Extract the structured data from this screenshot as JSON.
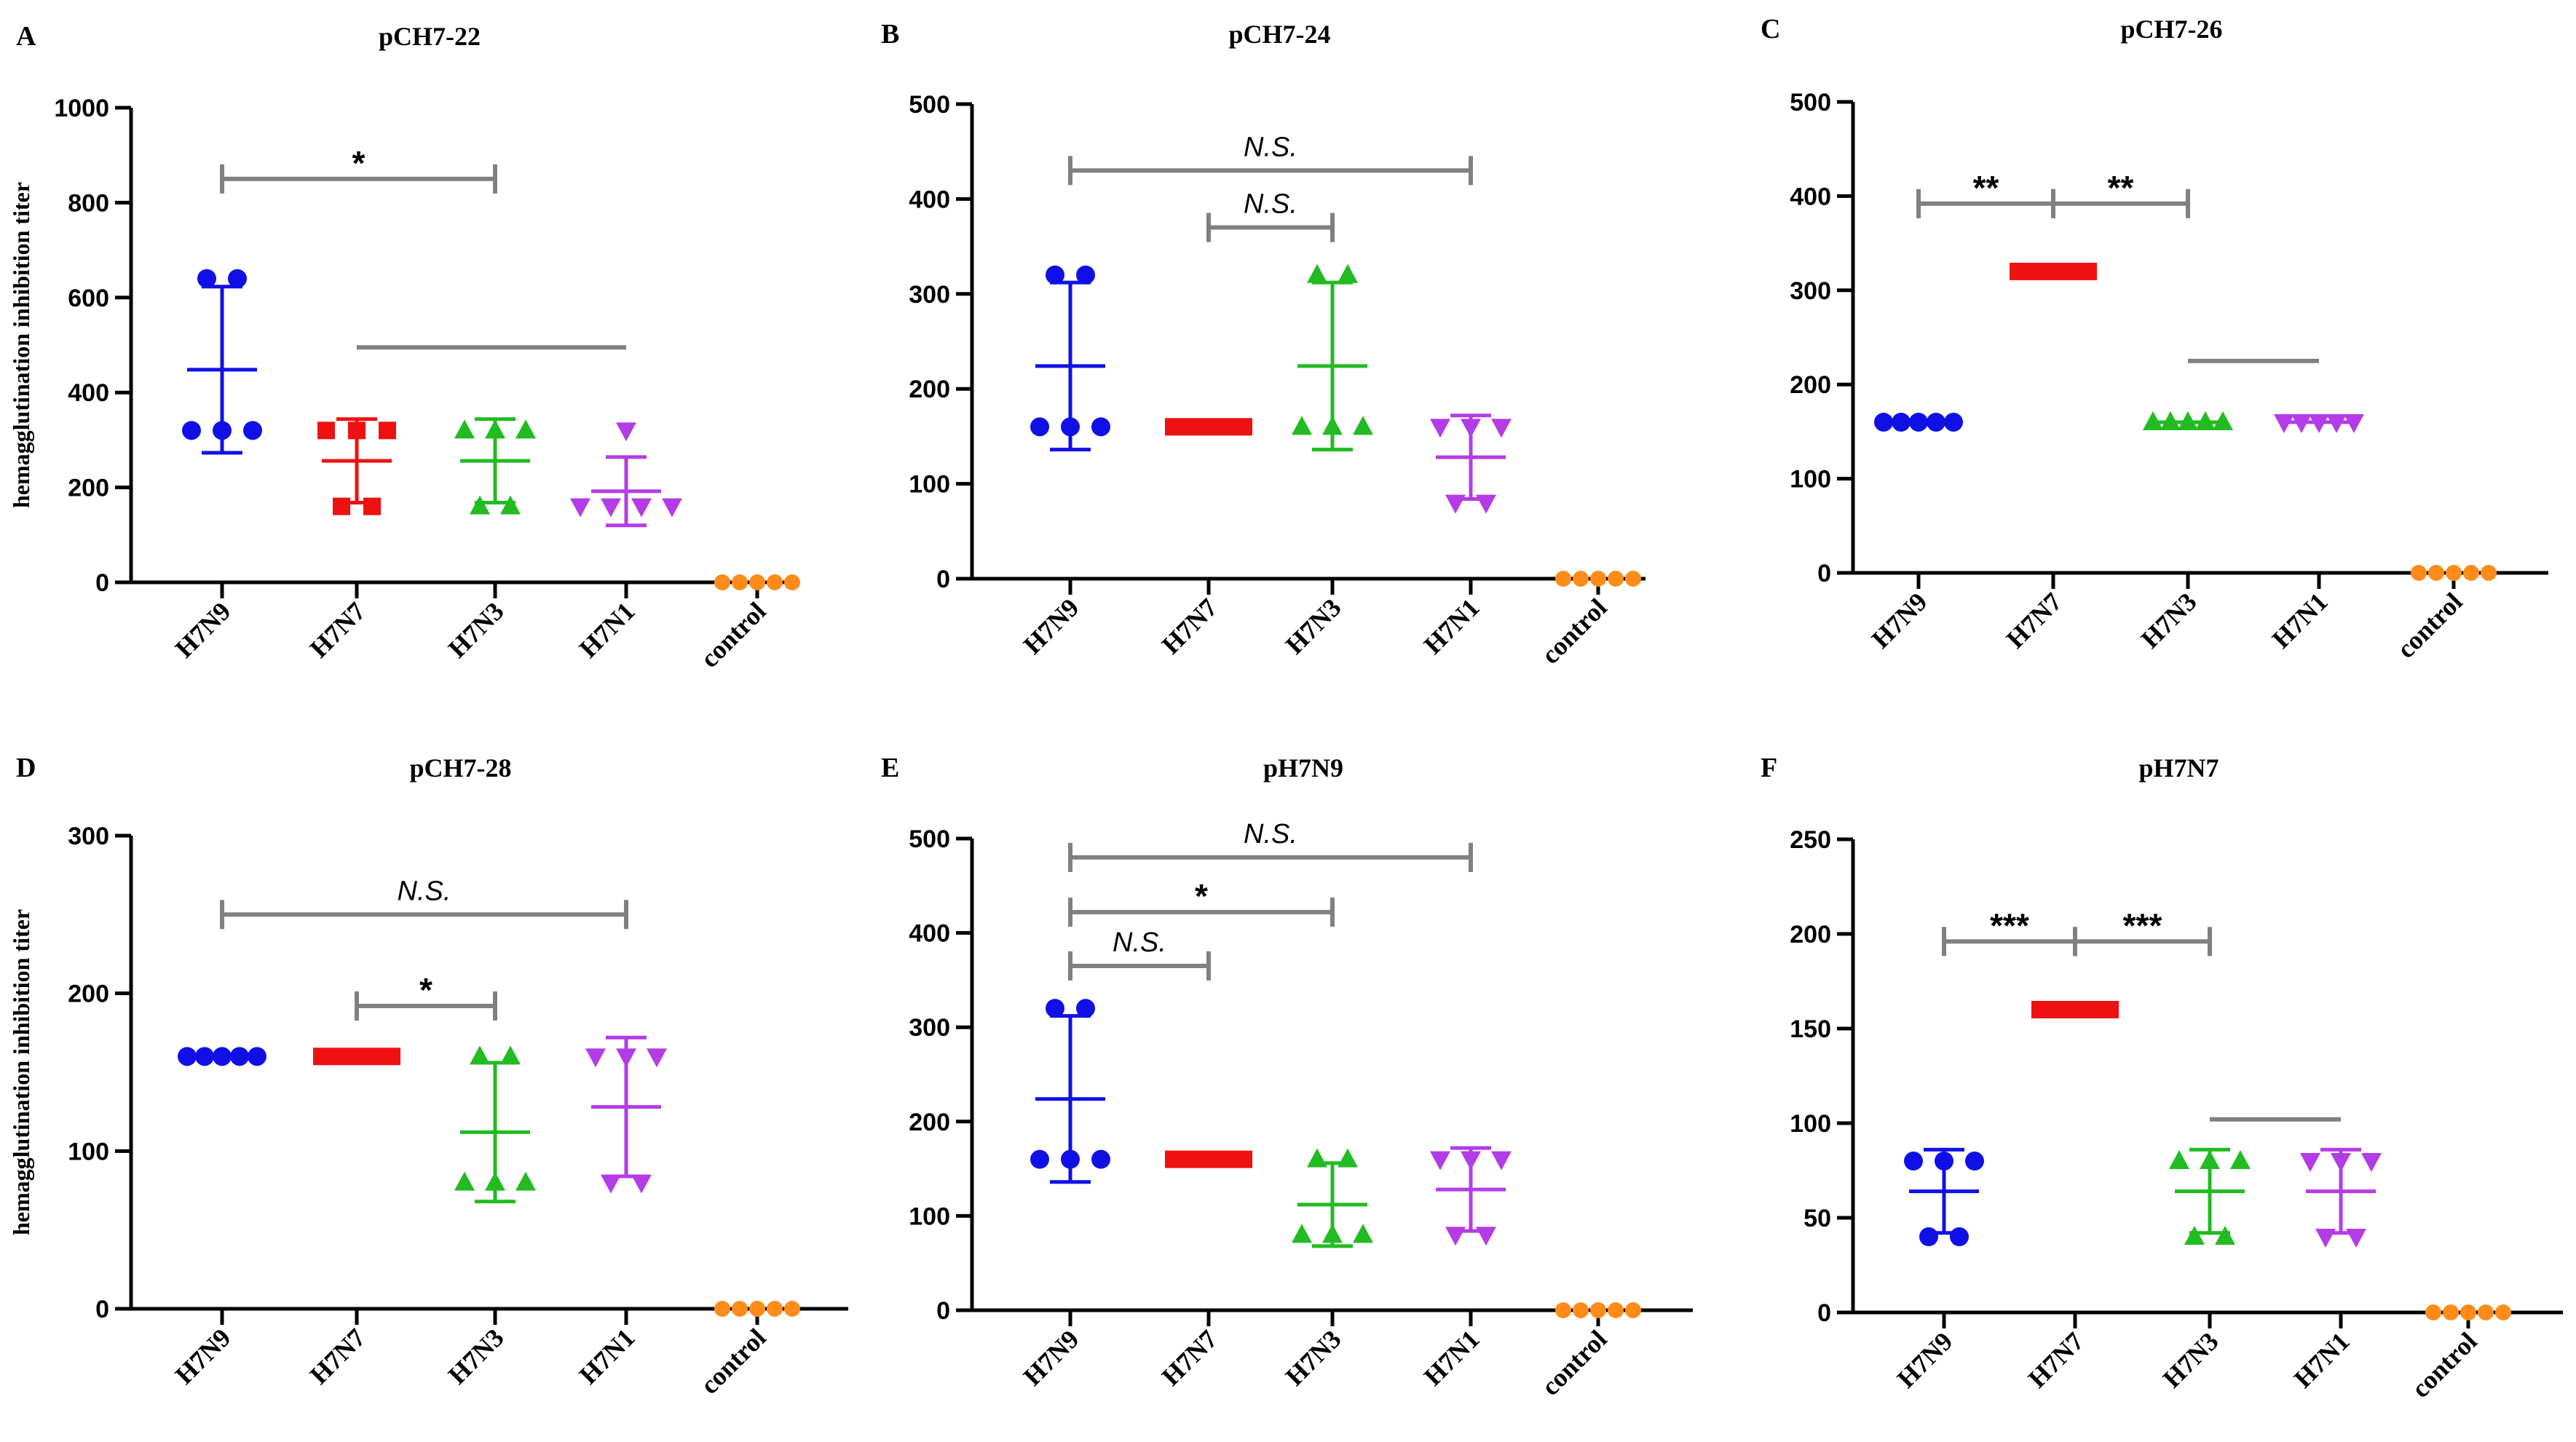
{
  "y_axis_label": "hemagglutination inhibition titer",
  "colors": {
    "H7N9": "#1010e6",
    "H7N7": "#ee1111",
    "H7N3": "#22bb22",
    "H7N1": "#b43ce6",
    "control": "#ff8c1a",
    "bracket": "#808080",
    "axis": "#000000"
  },
  "chart_data": [
    {
      "type": "scatter",
      "panel": "A",
      "title": "pCH7-22",
      "categories": [
        "H7N9",
        "H7N7",
        "H7N3",
        "H7N1",
        "control"
      ],
      "ylim": [
        0,
        1000
      ],
      "yticks": [
        0,
        200,
        400,
        600,
        800,
        1000
      ],
      "series": [
        {
          "name": "H7N9",
          "values": [
            320,
            320,
            320,
            640,
            640
          ],
          "mean": 448,
          "sd": 175
        },
        {
          "name": "H7N7",
          "values": [
            160,
            160,
            320,
            320,
            320
          ],
          "mean": 256,
          "sd": 88
        },
        {
          "name": "H7N3",
          "values": [
            160,
            160,
            320,
            320,
            320
          ],
          "mean": 256,
          "sd": 88
        },
        {
          "name": "H7N1",
          "values": [
            160,
            160,
            160,
            160,
            320
          ],
          "mean": 192,
          "sd": 72
        },
        {
          "name": "control",
          "values": [
            0,
            0,
            0,
            0,
            0
          ],
          "mean": 0,
          "sd": 0
        }
      ],
      "brackets": [
        {
          "from": "H7N9",
          "to": "H7N3",
          "label": "*",
          "y": 850,
          "ticks": true
        },
        {
          "from": "H7N7",
          "to": "H7N1",
          "label": "",
          "y": 495,
          "ticks": false
        }
      ]
    },
    {
      "type": "scatter",
      "panel": "B",
      "title": "pCH7-24",
      "categories": [
        "H7N9",
        "H7N7",
        "H7N3",
        "H7N1",
        "control"
      ],
      "ylim": [
        0,
        500
      ],
      "yticks": [
        0,
        100,
        200,
        300,
        400,
        500
      ],
      "series": [
        {
          "name": "H7N9",
          "values": [
            160,
            160,
            160,
            320,
            320
          ],
          "mean": 224,
          "sd": 88
        },
        {
          "name": "H7N7",
          "values": [
            160,
            160,
            160,
            160,
            160
          ],
          "mean": 160,
          "sd": 0
        },
        {
          "name": "H7N3",
          "values": [
            160,
            160,
            160,
            320,
            320
          ],
          "mean": 224,
          "sd": 88
        },
        {
          "name": "H7N1",
          "values": [
            80,
            80,
            160,
            160,
            160
          ],
          "mean": 128,
          "sd": 44
        },
        {
          "name": "control",
          "values": [
            0,
            0,
            0,
            0,
            0
          ],
          "mean": 0,
          "sd": 0
        }
      ],
      "brackets": [
        {
          "from": "H7N9",
          "to": "H7N1",
          "label": "N.S.",
          "y": 430,
          "ticks": true
        },
        {
          "from": "H7N7",
          "to": "H7N3",
          "label": "N.S.",
          "y": 370,
          "ticks": true
        }
      ]
    },
    {
      "type": "scatter",
      "panel": "C",
      "title": "pCH7-26",
      "categories": [
        "H7N9",
        "H7N7",
        "H7N3",
        "H7N1",
        "control"
      ],
      "ylim": [
        0,
        500
      ],
      "yticks": [
        0,
        100,
        200,
        300,
        400,
        500
      ],
      "series": [
        {
          "name": "H7N9",
          "values": [
            160,
            160,
            160,
            160,
            160
          ],
          "mean": 160,
          "sd": 0
        },
        {
          "name": "H7N7",
          "values": [
            320,
            320,
            320,
            320,
            320
          ],
          "mean": 320,
          "sd": 0
        },
        {
          "name": "H7N3",
          "values": [
            160,
            160,
            160,
            160,
            160
          ],
          "mean": 160,
          "sd": 0
        },
        {
          "name": "H7N1",
          "values": [
            160,
            160,
            160,
            160,
            160
          ],
          "mean": 160,
          "sd": 0
        },
        {
          "name": "control",
          "values": [
            0,
            0,
            0,
            0,
            0
          ],
          "mean": 0,
          "sd": 0
        }
      ],
      "brackets": [
        {
          "from": "H7N9",
          "to": "H7N7",
          "label": "**",
          "y": 392,
          "ticks": true
        },
        {
          "from": "H7N7",
          "to": "H7N3",
          "label": "**",
          "y": 392,
          "ticks": true
        },
        {
          "from": "H7N3",
          "to": "H7N1",
          "label": "",
          "y": 225,
          "ticks": false
        }
      ]
    },
    {
      "type": "scatter",
      "panel": "D",
      "title": "pCH7-28",
      "categories": [
        "H7N9",
        "H7N7",
        "H7N3",
        "H7N1",
        "control"
      ],
      "ylim": [
        0,
        300
      ],
      "yticks": [
        0,
        100,
        200,
        300
      ],
      "series": [
        {
          "name": "H7N9",
          "values": [
            160,
            160,
            160,
            160,
            160
          ],
          "mean": 160,
          "sd": 0
        },
        {
          "name": "H7N7",
          "values": [
            160,
            160,
            160,
            160,
            160
          ],
          "mean": 160,
          "sd": 0
        },
        {
          "name": "H7N3",
          "values": [
            80,
            80,
            80,
            160,
            160
          ],
          "mean": 112,
          "sd": 44
        },
        {
          "name": "H7N1",
          "values": [
            80,
            80,
            160,
            160,
            160
          ],
          "mean": 128,
          "sd": 44
        },
        {
          "name": "control",
          "values": [
            0,
            0,
            0,
            0,
            0
          ],
          "mean": 0,
          "sd": 0
        }
      ],
      "brackets": [
        {
          "from": "H7N9",
          "to": "H7N1",
          "label": "N.S.",
          "y": 250,
          "ticks": true
        },
        {
          "from": "H7N7",
          "to": "H7N3",
          "label": "*",
          "y": 192,
          "ticks": true
        }
      ]
    },
    {
      "type": "scatter",
      "panel": "E",
      "title": "pH7N9",
      "categories": [
        "H7N9",
        "H7N7",
        "H7N3",
        "H7N1",
        "control"
      ],
      "ylim": [
        0,
        500
      ],
      "yticks": [
        0,
        100,
        200,
        300,
        400,
        500
      ],
      "series": [
        {
          "name": "H7N9",
          "values": [
            160,
            160,
            160,
            320,
            320
          ],
          "mean": 224,
          "sd": 88
        },
        {
          "name": "H7N7",
          "values": [
            160,
            160,
            160,
            160,
            160
          ],
          "mean": 160,
          "sd": 0
        },
        {
          "name": "H7N3",
          "values": [
            80,
            80,
            80,
            160,
            160
          ],
          "mean": 112,
          "sd": 44
        },
        {
          "name": "H7N1",
          "values": [
            80,
            80,
            160,
            160,
            160
          ],
          "mean": 128,
          "sd": 44
        },
        {
          "name": "control",
          "values": [
            0,
            0,
            0,
            0,
            0
          ],
          "mean": 0,
          "sd": 0
        }
      ],
      "brackets": [
        {
          "from": "H7N9",
          "to": "H7N1",
          "label": "N.S.",
          "y": 480,
          "ticks": true
        },
        {
          "from": "H7N9",
          "to": "H7N3",
          "label": "*",
          "y": 422,
          "ticks": true
        },
        {
          "from": "H7N9",
          "to": "H7N7",
          "label": "N.S.",
          "y": 365,
          "ticks": true
        }
      ]
    },
    {
      "type": "scatter",
      "panel": "F",
      "title": "pH7N7",
      "categories": [
        "H7N9",
        "H7N7",
        "H7N3",
        "H7N1",
        "control"
      ],
      "ylim": [
        0,
        250
      ],
      "yticks": [
        0,
        50,
        100,
        150,
        200,
        250
      ],
      "series": [
        {
          "name": "H7N9",
          "values": [
            40,
            40,
            80,
            80,
            80
          ],
          "mean": 64,
          "sd": 22
        },
        {
          "name": "H7N7",
          "values": [
            160,
            160,
            160,
            160,
            160
          ],
          "mean": 160,
          "sd": 0
        },
        {
          "name": "H7N3",
          "values": [
            40,
            40,
            80,
            80,
            80
          ],
          "mean": 64,
          "sd": 22
        },
        {
          "name": "H7N1",
          "values": [
            40,
            40,
            80,
            80,
            80
          ],
          "mean": 64,
          "sd": 22
        },
        {
          "name": "control",
          "values": [
            0,
            0,
            0,
            0,
            0
          ],
          "mean": 0,
          "sd": 0
        }
      ],
      "brackets": [
        {
          "from": "H7N9",
          "to": "H7N7",
          "label": "***",
          "y": 196,
          "ticks": true
        },
        {
          "from": "H7N7",
          "to": "H7N3",
          "label": "***",
          "y": 196,
          "ticks": true
        },
        {
          "from": "H7N3",
          "to": "H7N1",
          "label": "",
          "y": 102,
          "ticks": false
        }
      ]
    }
  ]
}
